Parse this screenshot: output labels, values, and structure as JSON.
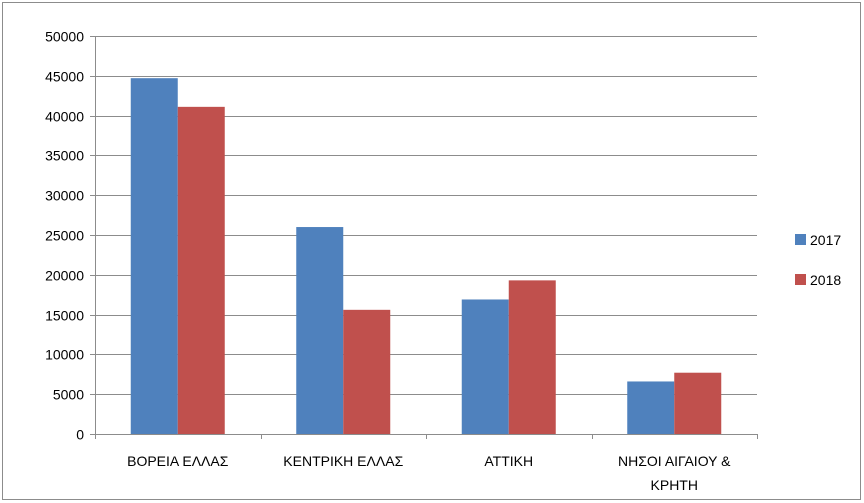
{
  "chart_data": {
    "type": "bar",
    "categories": [
      "ΒΟΡΕΙΑ ΕΛΛΑΣ",
      "ΚΕΝΤΡΙΚΗ ΕΛΛΑΣ",
      "ΑΤΤΙΚΗ",
      "ΝΗΣΟΙ ΑΙΓΑΙΟΥ & ΚΡΗΤΗ"
    ],
    "category_lines": [
      [
        "ΒΟΡΕΙΑ ΕΛΛΑΣ"
      ],
      [
        "ΚΕΝΤΡΙΚΗ ΕΛΛΑΣ"
      ],
      [
        "ΑΤΤΙΚΗ"
      ],
      [
        "ΝΗΣΟΙ ΑΙΓΑΙΟΥ &",
        "ΚΡΗΤΗ"
      ]
    ],
    "series": [
      {
        "name": "2017",
        "values": [
          44700,
          26000,
          16900,
          6600
        ],
        "color": "#4F81BD"
      },
      {
        "name": "2018",
        "values": [
          41100,
          15600,
          19300,
          7700
        ],
        "color": "#C0504D"
      }
    ],
    "ylim": [
      0,
      50000
    ],
    "yticks": [
      0,
      5000,
      10000,
      15000,
      20000,
      25000,
      30000,
      35000,
      40000,
      45000,
      50000
    ],
    "grid": true,
    "legend": "right",
    "title": "",
    "xlabel": "",
    "ylabel": ""
  }
}
